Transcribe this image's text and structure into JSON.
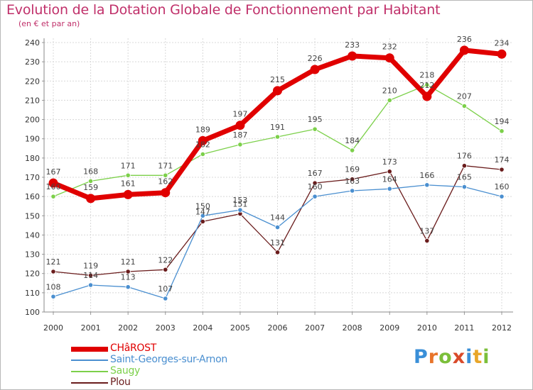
{
  "header": {
    "title": "Evolution de la Dotation Globale de Fonctionnement par Habitant",
    "subtitle": "(en € et par an)"
  },
  "brand": {
    "letters": [
      "P",
      "r",
      "o",
      "x",
      "i",
      "t",
      "i"
    ],
    "colors": [
      "#3a8fd8",
      "#e8742a",
      "#7bbf3a",
      "#d94a2a",
      "#3a8fd8",
      "#e8a62a",
      "#7bbf3a"
    ]
  },
  "chart_data": {
    "type": "line",
    "title": "Evolution de la Dotation Globale de Fonctionnement par Habitant",
    "subtitle": "(en € et par an)",
    "xlabel": "",
    "ylabel": "",
    "x": [
      "2000",
      "2001",
      "2002",
      "2003",
      "2004",
      "2005",
      "2006",
      "2007",
      "2008",
      "2009",
      "2010",
      "2011",
      "2012"
    ],
    "ylim": [
      100,
      240
    ],
    "yticks": [
      100,
      110,
      120,
      130,
      140,
      150,
      160,
      170,
      180,
      190,
      200,
      210,
      220,
      230,
      240
    ],
    "grid": true,
    "legend_position": "bottom-left",
    "series": [
      {
        "name": "CHâROST",
        "color": "#e00000",
        "emphasis": true,
        "values": [
          167,
          159,
          161,
          162,
          189,
          197,
          215,
          226,
          233,
          232,
          212,
          236,
          234
        ]
      },
      {
        "name": "Saint-Georges-sur-Arnon",
        "color": "#4a8fd0",
        "emphasis": false,
        "values": [
          108,
          114,
          113,
          107,
          150,
          153,
          144,
          160,
          163,
          164,
          166,
          165,
          160
        ]
      },
      {
        "name": "Saugy",
        "color": "#7cd04a",
        "emphasis": false,
        "values": [
          160,
          168,
          171,
          171,
          182,
          187,
          191,
          195,
          184,
          210,
          218,
          207,
          194
        ]
      },
      {
        "name": "Plou",
        "color": "#6a1c1c",
        "emphasis": false,
        "values": [
          121,
          119,
          121,
          122,
          147,
          151,
          131,
          167,
          169,
          173,
          137,
          176,
          174
        ]
      }
    ],
    "data_labels": [
      [
        "167",
        "159",
        "161",
        "162",
        "189",
        "197",
        "215",
        "226",
        "233",
        "232",
        "212",
        "236",
        "234"
      ],
      [
        "108",
        "114",
        "113",
        "107",
        "150",
        "153",
        "144",
        "160",
        "163",
        "164",
        "166",
        "165",
        "160"
      ],
      [
        "160",
        "168",
        "171",
        "171",
        "182",
        "187",
        "191",
        "195",
        "184",
        "210",
        "218",
        "207",
        "194"
      ],
      [
        "121",
        "119",
        "121",
        "122",
        "147",
        "151",
        "131",
        "167",
        "169",
        "173",
        "137",
        "176",
        "174"
      ]
    ]
  }
}
